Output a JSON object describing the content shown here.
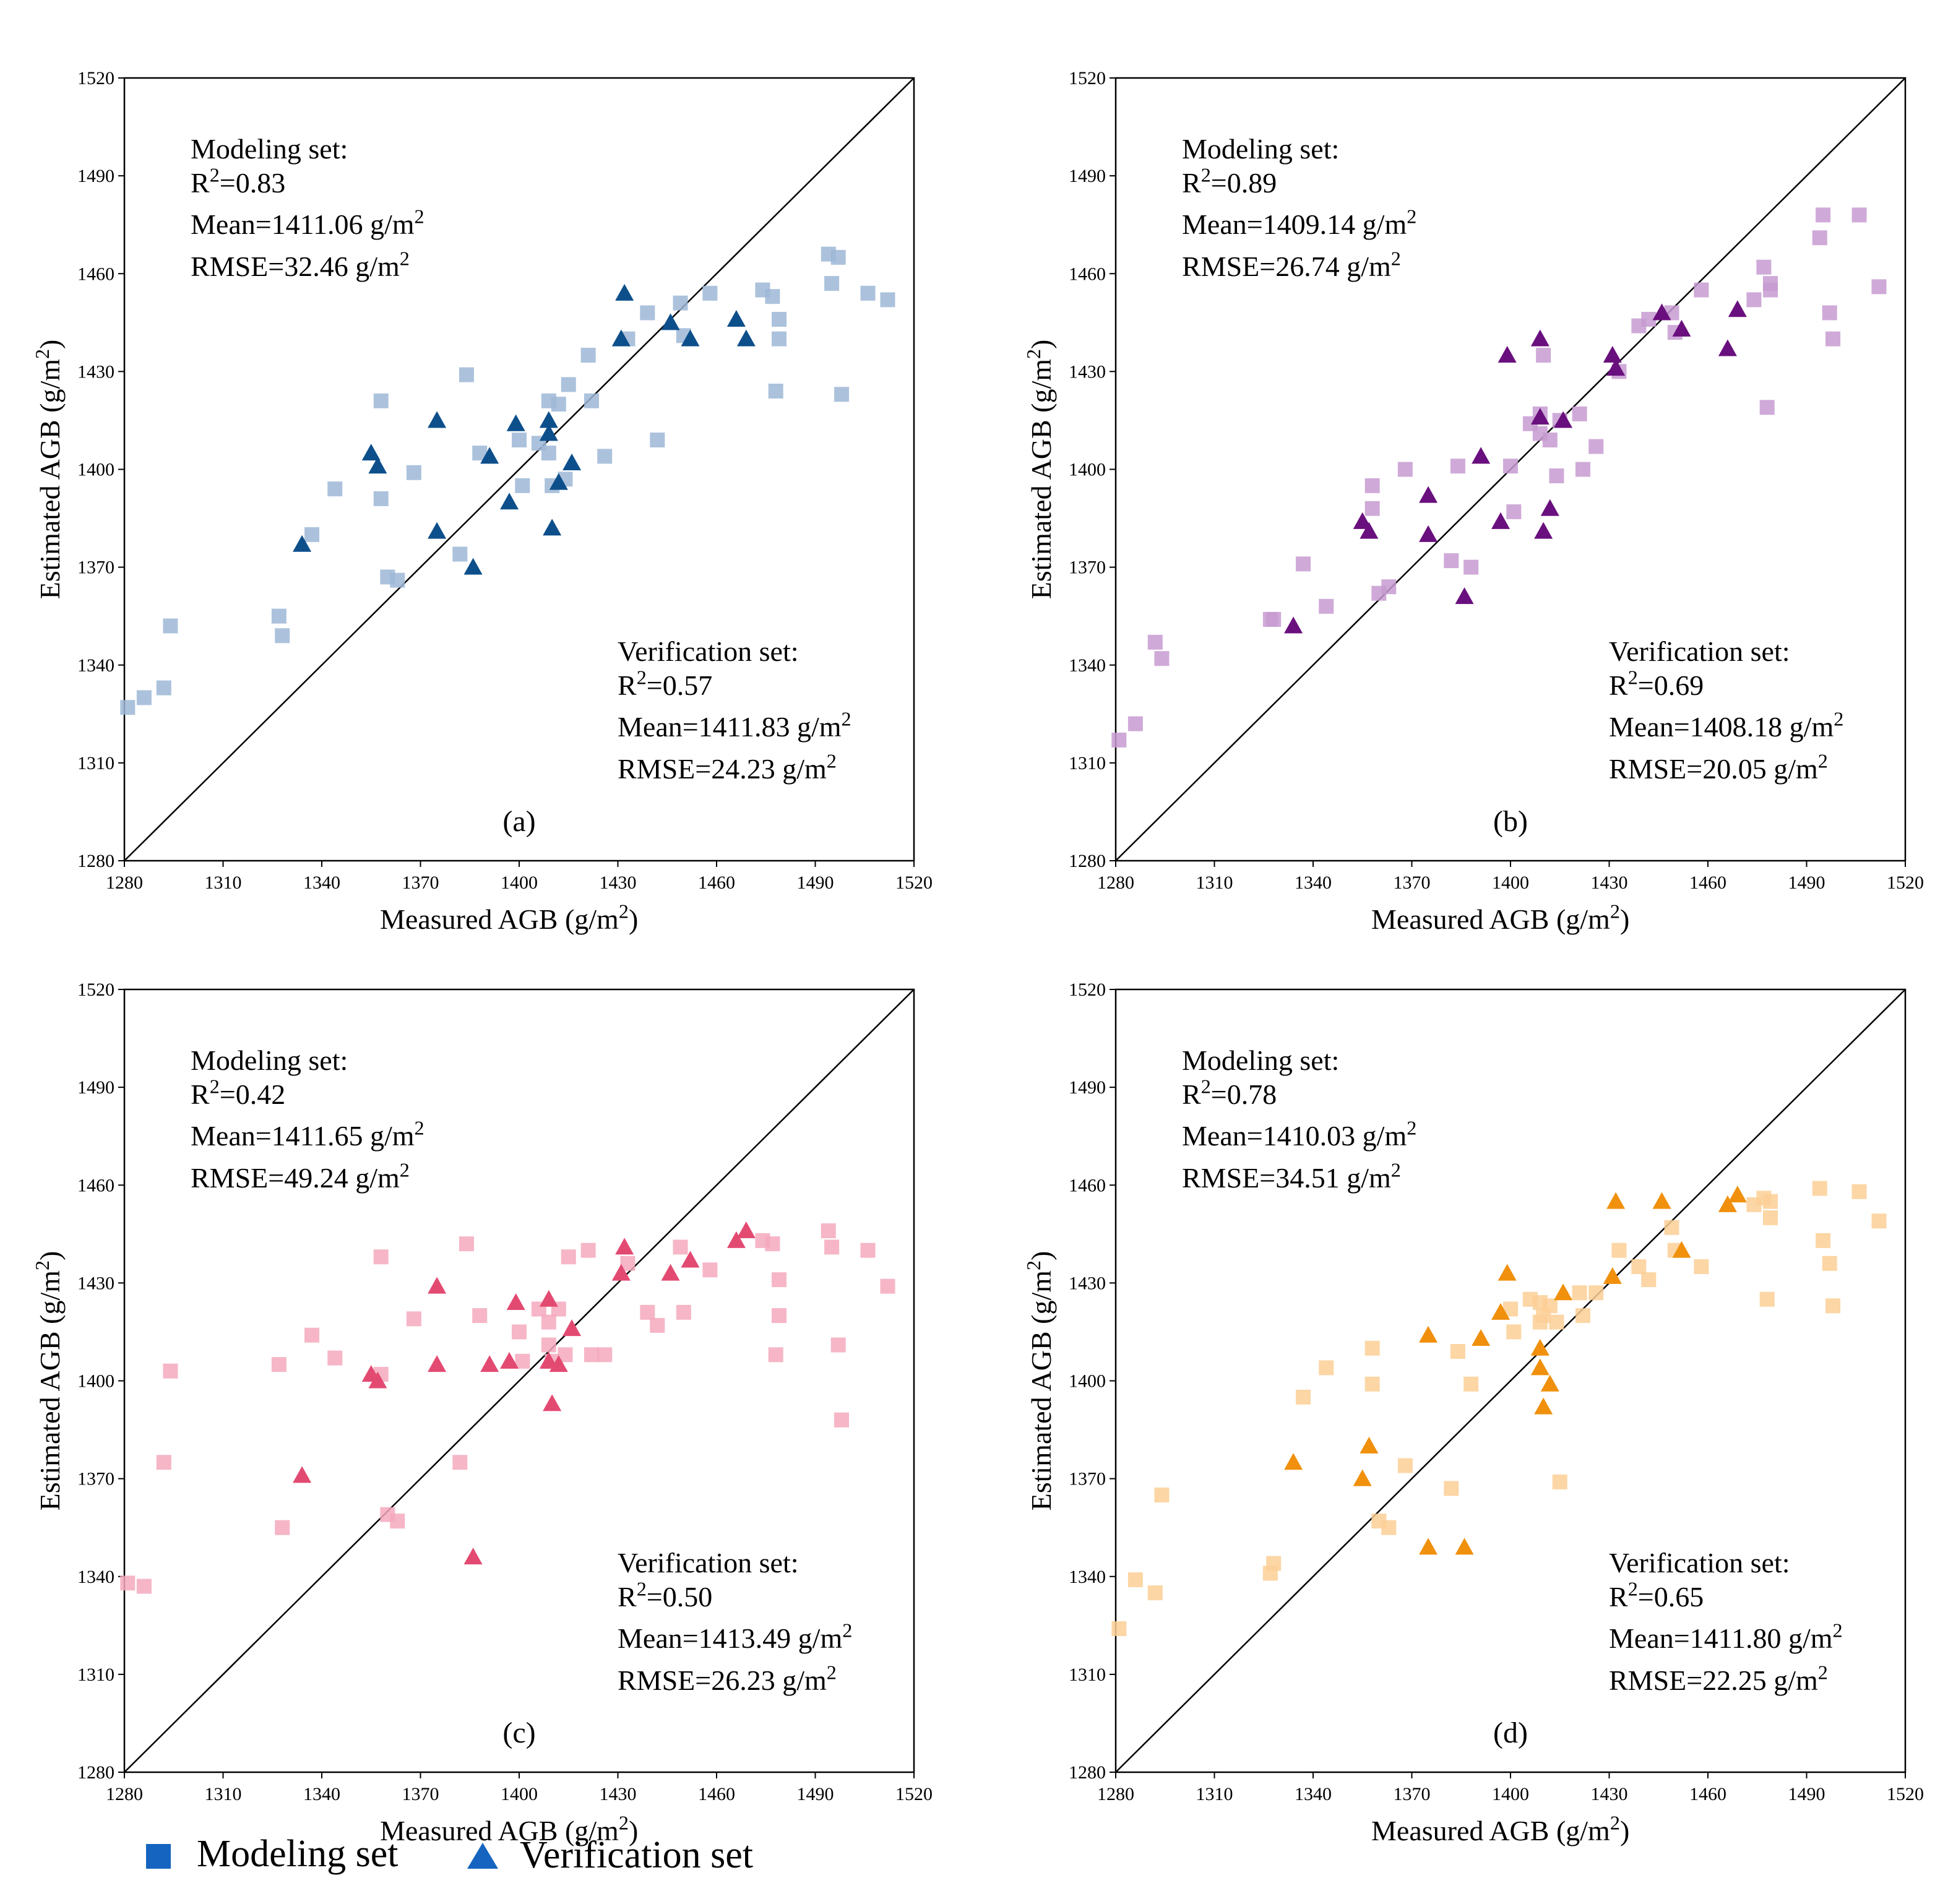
{
  "figure": {
    "x_label": "Measured AGB (g/m²)",
    "y_label_main": "Estimated AGB (g/m",
    "y_label_sup": "2",
    "y_label_end": ")",
    "x_label_main": "Measured AGB (g/m",
    "x_label_sup": "2",
    "x_label_end": ")",
    "unit_prefix": " g/m",
    "unit_sup": "2",
    "modeling_header": "Modeling set:",
    "verification_header": "Verification set:",
    "legend": {
      "modeling_label": "Modeling set",
      "verification_label": "Verification set",
      "legend_color": "#1565c0"
    }
  },
  "chart_data": [
    {
      "type": "scatter",
      "panel_label": "(a)",
      "xlim": [
        1280,
        1520
      ],
      "ylim": [
        1280,
        1520
      ],
      "x_ticks": [
        1280,
        1310,
        1340,
        1370,
        1400,
        1430,
        1460,
        1490,
        1520
      ],
      "y_ticks": [
        1280,
        1310,
        1340,
        1370,
        1400,
        1430,
        1460,
        1490,
        1520
      ],
      "modeling_color": "#9db7d6",
      "verification_color": "#0d4f8b",
      "modeling_stats": {
        "r2": "R²=0.83",
        "r2_main": "R",
        "r2_sup": "2",
        "r2_val": "=0.83",
        "mean": "Mean=1411.06",
        "rmse": "RMSE=32.46"
      },
      "verification_stats": {
        "r2_main": "R",
        "r2_sup": "2",
        "r2_val": "=0.57",
        "mean": "Mean=1411.83",
        "rmse": "RMSE=24.23"
      },
      "modeling": [
        [
          1281,
          1327
        ],
        [
          1286,
          1330
        ],
        [
          1292,
          1333
        ],
        [
          1294,
          1352
        ],
        [
          1327,
          1355
        ],
        [
          1328,
          1349
        ],
        [
          1337,
          1380
        ],
        [
          1344,
          1394
        ],
        [
          1358,
          1421
        ],
        [
          1358,
          1391
        ],
        [
          1360,
          1367
        ],
        [
          1363,
          1366
        ],
        [
          1368,
          1399
        ],
        [
          1382,
          1374
        ],
        [
          1384,
          1429
        ],
        [
          1388,
          1405
        ],
        [
          1400,
          1409
        ],
        [
          1401,
          1395
        ],
        [
          1406,
          1408
        ],
        [
          1409,
          1421
        ],
        [
          1409,
          1405
        ],
        [
          1410,
          1395
        ],
        [
          1412,
          1420
        ],
        [
          1414,
          1397
        ],
        [
          1415,
          1426
        ],
        [
          1421,
          1435
        ],
        [
          1422,
          1421
        ],
        [
          1426,
          1404
        ],
        [
          1433,
          1440
        ],
        [
          1439,
          1448
        ],
        [
          1442,
          1409
        ],
        [
          1449,
          1451
        ],
        [
          1450,
          1441
        ],
        [
          1458,
          1454
        ],
        [
          1474,
          1455
        ],
        [
          1477,
          1453
        ],
        [
          1478,
          1424
        ],
        [
          1479,
          1440
        ],
        [
          1479,
          1446
        ],
        [
          1494,
          1466
        ],
        [
          1495,
          1457
        ],
        [
          1497,
          1465
        ],
        [
          1498,
          1423
        ],
        [
          1506,
          1454
        ],
        [
          1512,
          1452
        ]
      ],
      "verification": [
        [
          1334,
          1377
        ],
        [
          1355,
          1405
        ],
        [
          1357,
          1401
        ],
        [
          1375,
          1415
        ],
        [
          1375,
          1381
        ],
        [
          1386,
          1370
        ],
        [
          1391,
          1404
        ],
        [
          1397,
          1390
        ],
        [
          1399,
          1414
        ],
        [
          1409,
          1415
        ],
        [
          1409,
          1411
        ],
        [
          1410,
          1382
        ],
        [
          1412,
          1396
        ],
        [
          1416,
          1402
        ],
        [
          1431,
          1440
        ],
        [
          1432,
          1454
        ],
        [
          1446,
          1445
        ],
        [
          1452,
          1440
        ],
        [
          1466,
          1446
        ],
        [
          1469,
          1440
        ]
      ]
    },
    {
      "type": "scatter",
      "panel_label": "(b)",
      "xlim": [
        1280,
        1520
      ],
      "ylim": [
        1280,
        1520
      ],
      "x_ticks": [
        1280,
        1310,
        1340,
        1370,
        1400,
        1430,
        1460,
        1490,
        1520
      ],
      "y_ticks": [
        1280,
        1310,
        1340,
        1370,
        1400,
        1430,
        1460,
        1490,
        1520
      ],
      "modeling_color": "#c79bd1",
      "verification_color": "#6a0f7e",
      "modeling_stats": {
        "r2_main": "R",
        "r2_sup": "2",
        "r2_val": "=0.89",
        "mean": "Mean=1409.14",
        "rmse": "RMSE=26.74"
      },
      "verification_stats": {
        "r2_main": "R",
        "r2_sup": "2",
        "r2_val": "=0.69",
        "mean": "Mean=1408.18",
        "rmse": "RMSE=20.05"
      },
      "modeling": [
        [
          1281,
          1317
        ],
        [
          1286,
          1322
        ],
        [
          1292,
          1347
        ],
        [
          1294,
          1342
        ],
        [
          1327,
          1354
        ],
        [
          1328,
          1354
        ],
        [
          1337,
          1371
        ],
        [
          1344,
          1358
        ],
        [
          1358,
          1395
        ],
        [
          1358,
          1388
        ],
        [
          1360,
          1362
        ],
        [
          1363,
          1364
        ],
        [
          1368,
          1400
        ],
        [
          1382,
          1372
        ],
        [
          1384,
          1401
        ],
        [
          1388,
          1370
        ],
        [
          1400,
          1401
        ],
        [
          1401,
          1387
        ],
        [
          1406,
          1414
        ],
        [
          1409,
          1417
        ],
        [
          1409,
          1411
        ],
        [
          1410,
          1435
        ],
        [
          1412,
          1409
        ],
        [
          1414,
          1398
        ],
        [
          1415,
          1415
        ],
        [
          1421,
          1417
        ],
        [
          1422,
          1400
        ],
        [
          1426,
          1407
        ],
        [
          1433,
          1430
        ],
        [
          1439,
          1444
        ],
        [
          1442,
          1446
        ],
        [
          1449,
          1448
        ],
        [
          1450,
          1442
        ],
        [
          1458,
          1455
        ],
        [
          1474,
          1452
        ],
        [
          1477,
          1462
        ],
        [
          1478,
          1419
        ],
        [
          1479,
          1455
        ],
        [
          1479,
          1457
        ],
        [
          1494,
          1471
        ],
        [
          1495,
          1478
        ],
        [
          1497,
          1448
        ],
        [
          1498,
          1440
        ],
        [
          1506,
          1478
        ],
        [
          1512,
          1456
        ]
      ],
      "verification": [
        [
          1334,
          1352
        ],
        [
          1355,
          1384
        ],
        [
          1357,
          1381
        ],
        [
          1375,
          1392
        ],
        [
          1375,
          1380
        ],
        [
          1386,
          1361
        ],
        [
          1391,
          1404
        ],
        [
          1397,
          1384
        ],
        [
          1399,
          1435
        ],
        [
          1409,
          1440
        ],
        [
          1409,
          1416
        ],
        [
          1410,
          1381
        ],
        [
          1412,
          1388
        ],
        [
          1416,
          1415
        ],
        [
          1431,
          1435
        ],
        [
          1432,
          1431
        ],
        [
          1446,
          1448
        ],
        [
          1452,
          1443
        ],
        [
          1466,
          1437
        ],
        [
          1469,
          1449
        ]
      ]
    },
    {
      "type": "scatter",
      "panel_label": "(c)",
      "xlim": [
        1280,
        1520
      ],
      "ylim": [
        1280,
        1520
      ],
      "x_ticks": [
        1280,
        1310,
        1340,
        1370,
        1400,
        1430,
        1460,
        1490,
        1520
      ],
      "y_ticks": [
        1280,
        1310,
        1340,
        1370,
        1400,
        1430,
        1460,
        1490,
        1520
      ],
      "modeling_color": "#f5a9bd",
      "verification_color": "#e34a72",
      "modeling_stats": {
        "r2_main": "R",
        "r2_sup": "2",
        "r2_val": "=0.42",
        "mean": "Mean=1411.65",
        "rmse": "RMSE=49.24"
      },
      "verification_stats": {
        "r2_main": "R",
        "r2_sup": "2",
        "r2_val": "=0.50",
        "mean": "Mean=1413.49",
        "rmse": "RMSE=26.23"
      },
      "modeling": [
        [
          1281,
          1338
        ],
        [
          1286,
          1337
        ],
        [
          1292,
          1375
        ],
        [
          1294,
          1403
        ],
        [
          1327,
          1405
        ],
        [
          1328,
          1355
        ],
        [
          1337,
          1414
        ],
        [
          1344,
          1407
        ],
        [
          1358,
          1438
        ],
        [
          1358,
          1402
        ],
        [
          1360,
          1359
        ],
        [
          1363,
          1357
        ],
        [
          1368,
          1419
        ],
        [
          1382,
          1375
        ],
        [
          1384,
          1442
        ],
        [
          1388,
          1420
        ],
        [
          1400,
          1415
        ],
        [
          1401,
          1406
        ],
        [
          1406,
          1422
        ],
        [
          1409,
          1418
        ],
        [
          1409,
          1411
        ],
        [
          1410,
          1406
        ],
        [
          1412,
          1422
        ],
        [
          1414,
          1408
        ],
        [
          1415,
          1438
        ],
        [
          1421,
          1440
        ],
        [
          1422,
          1408
        ],
        [
          1426,
          1408
        ],
        [
          1433,
          1436
        ],
        [
          1439,
          1421
        ],
        [
          1442,
          1417
        ],
        [
          1449,
          1441
        ],
        [
          1450,
          1421
        ],
        [
          1458,
          1434
        ],
        [
          1474,
          1443
        ],
        [
          1477,
          1442
        ],
        [
          1478,
          1408
        ],
        [
          1479,
          1431
        ],
        [
          1479,
          1420
        ],
        [
          1494,
          1446
        ],
        [
          1495,
          1441
        ],
        [
          1497,
          1411
        ],
        [
          1498,
          1388
        ],
        [
          1506,
          1440
        ],
        [
          1512,
          1429
        ]
      ],
      "verification": [
        [
          1334,
          1371
        ],
        [
          1355,
          1402
        ],
        [
          1357,
          1400
        ],
        [
          1375,
          1429
        ],
        [
          1375,
          1405
        ],
        [
          1386,
          1346
        ],
        [
          1391,
          1405
        ],
        [
          1397,
          1406
        ],
        [
          1399,
          1424
        ],
        [
          1409,
          1425
        ],
        [
          1409,
          1406
        ],
        [
          1410,
          1393
        ],
        [
          1412,
          1405
        ],
        [
          1416,
          1416
        ],
        [
          1431,
          1433
        ],
        [
          1432,
          1441
        ],
        [
          1446,
          1433
        ],
        [
          1452,
          1437
        ],
        [
          1466,
          1443
        ],
        [
          1469,
          1446
        ]
      ]
    },
    {
      "type": "scatter",
      "panel_label": "(d)",
      "xlim": [
        1280,
        1520
      ],
      "ylim": [
        1280,
        1520
      ],
      "x_ticks": [
        1280,
        1310,
        1340,
        1370,
        1400,
        1430,
        1460,
        1490,
        1520
      ],
      "y_ticks": [
        1280,
        1310,
        1340,
        1370,
        1400,
        1430,
        1460,
        1490,
        1520
      ],
      "modeling_color": "#fbcf95",
      "verification_color": "#f0900c",
      "modeling_stats": {
        "r2_main": "R",
        "r2_sup": "2",
        "r2_val": "=0.78",
        "mean": "Mean=1410.03",
        "rmse": "RMSE=34.51"
      },
      "verification_stats": {
        "r2_main": "R",
        "r2_sup": "2",
        "r2_val": "=0.65",
        "mean": "Mean=1411.80",
        "rmse": "RMSE=22.25"
      },
      "modeling": [
        [
          1281,
          1324
        ],
        [
          1286,
          1339
        ],
        [
          1292,
          1335
        ],
        [
          1294,
          1365
        ],
        [
          1327,
          1341
        ],
        [
          1328,
          1344
        ],
        [
          1337,
          1395
        ],
        [
          1344,
          1404
        ],
        [
          1358,
          1410
        ],
        [
          1358,
          1399
        ],
        [
          1360,
          1357
        ],
        [
          1363,
          1355
        ],
        [
          1368,
          1374
        ],
        [
          1382,
          1367
        ],
        [
          1384,
          1409
        ],
        [
          1388,
          1399
        ],
        [
          1400,
          1422
        ],
        [
          1401,
          1415
        ],
        [
          1406,
          1425
        ],
        [
          1409,
          1424
        ],
        [
          1409,
          1418
        ],
        [
          1410,
          1420
        ],
        [
          1412,
          1423
        ],
        [
          1414,
          1418
        ],
        [
          1415,
          1369
        ],
        [
          1421,
          1427
        ],
        [
          1422,
          1420
        ],
        [
          1426,
          1427
        ],
        [
          1433,
          1440
        ],
        [
          1439,
          1435
        ],
        [
          1442,
          1431
        ],
        [
          1449,
          1447
        ],
        [
          1450,
          1440
        ],
        [
          1458,
          1435
        ],
        [
          1474,
          1454
        ],
        [
          1477,
          1456
        ],
        [
          1478,
          1425
        ],
        [
          1479,
          1450
        ],
        [
          1479,
          1455
        ],
        [
          1494,
          1459
        ],
        [
          1495,
          1443
        ],
        [
          1497,
          1436
        ],
        [
          1498,
          1423
        ],
        [
          1506,
          1458
        ],
        [
          1512,
          1449
        ]
      ],
      "verification": [
        [
          1334,
          1375
        ],
        [
          1355,
          1370
        ],
        [
          1357,
          1380
        ],
        [
          1375,
          1349
        ],
        [
          1375,
          1414
        ],
        [
          1386,
          1349
        ],
        [
          1391,
          1413
        ],
        [
          1397,
          1421
        ],
        [
          1399,
          1433
        ],
        [
          1409,
          1410
        ],
        [
          1409,
          1404
        ],
        [
          1410,
          1392
        ],
        [
          1412,
          1399
        ],
        [
          1416,
          1427
        ],
        [
          1431,
          1432
        ],
        [
          1432,
          1455
        ],
        [
          1446,
          1455
        ],
        [
          1452,
          1440
        ],
        [
          1466,
          1454
        ],
        [
          1469,
          1457
        ]
      ]
    }
  ]
}
